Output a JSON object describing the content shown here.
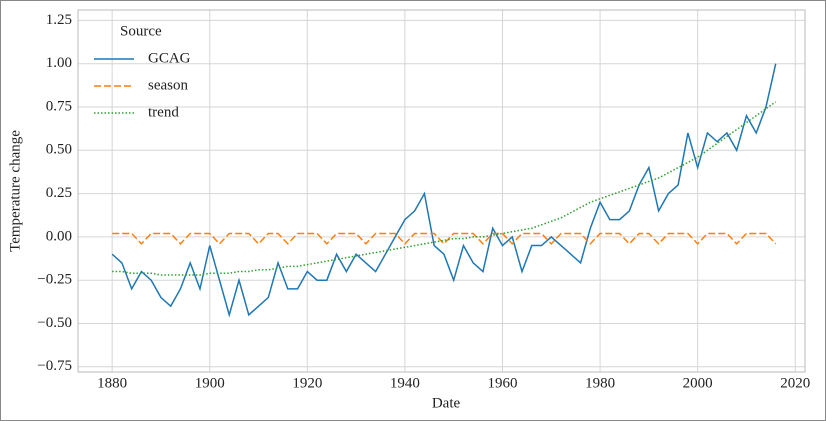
{
  "chart_data": {
    "type": "line",
    "xlabel": "Date",
    "ylabel": "Temperature change",
    "legend_title": "Source",
    "legend_position": "upper left",
    "grid": true,
    "xlim": [
      1873,
      2022
    ],
    "ylim": [
      -0.78,
      1.31
    ],
    "xticks": [
      1880,
      1900,
      1920,
      1940,
      1960,
      1980,
      2000,
      2020
    ],
    "yticks": [
      {
        "value": -0.75,
        "label": "−0.75"
      },
      {
        "value": -0.5,
        "label": "−0.50"
      },
      {
        "value": -0.25,
        "label": "−0.25"
      },
      {
        "value": 0,
        "label": "0.00"
      },
      {
        "value": 0.25,
        "label": "0.25"
      },
      {
        "value": 0.5,
        "label": "0.50"
      },
      {
        "value": 0.75,
        "label": "0.75"
      },
      {
        "value": 1,
        "label": "1.00"
      },
      {
        "value": 1.25,
        "label": "1.25"
      }
    ],
    "x": [
      1880,
      1882,
      1884,
      1886,
      1888,
      1890,
      1892,
      1894,
      1896,
      1898,
      1900,
      1902,
      1904,
      1906,
      1908,
      1910,
      1912,
      1914,
      1916,
      1918,
      1920,
      1922,
      1924,
      1926,
      1928,
      1930,
      1932,
      1934,
      1936,
      1938,
      1940,
      1942,
      1944,
      1946,
      1948,
      1950,
      1952,
      1954,
      1956,
      1958,
      1960,
      1962,
      1964,
      1966,
      1968,
      1970,
      1972,
      1974,
      1976,
      1978,
      1980,
      1982,
      1984,
      1986,
      1988,
      1990,
      1992,
      1994,
      1996,
      1998,
      2000,
      2002,
      2004,
      2006,
      2008,
      2010,
      2012,
      2014,
      2016
    ],
    "series": [
      {
        "name": "GCAG",
        "color": "#1f77b4",
        "linestyle": "solid",
        "values": [
          -0.1,
          -0.15,
          -0.3,
          -0.2,
          -0.25,
          -0.35,
          -0.4,
          -0.3,
          -0.15,
          -0.3,
          -0.05,
          -0.25,
          -0.45,
          -0.25,
          -0.45,
          -0.4,
          -0.35,
          -0.15,
          -0.3,
          -0.3,
          -0.2,
          -0.25,
          -0.25,
          -0.1,
          -0.2,
          -0.1,
          -0.15,
          -0.2,
          -0.1,
          0.0,
          0.1,
          0.15,
          0.25,
          -0.05,
          -0.1,
          -0.25,
          -0.05,
          -0.15,
          -0.2,
          0.05,
          -0.05,
          0.0,
          -0.2,
          -0.05,
          -0.05,
          0.0,
          -0.05,
          -0.1,
          -0.15,
          0.05,
          0.2,
          0.1,
          0.1,
          0.15,
          0.3,
          0.4,
          0.15,
          0.25,
          0.3,
          0.6,
          0.4,
          0.6,
          0.55,
          0.6,
          0.5,
          0.7,
          0.6,
          0.75,
          1.0
        ]
      },
      {
        "name": "season",
        "color": "#ff7f0e",
        "linestyle": "dashed",
        "values": [
          0.02,
          0.02,
          0.02,
          -0.04,
          0.02,
          0.02,
          0.02,
          -0.04,
          0.02,
          0.02,
          0.02,
          -0.04,
          0.02,
          0.02,
          0.02,
          -0.04,
          0.02,
          0.02,
          -0.04,
          0.02,
          0.02,
          0.02,
          -0.04,
          0.02,
          0.02,
          0.02,
          -0.04,
          0.02,
          0.02,
          0.02,
          -0.04,
          0.02,
          0.02,
          0.02,
          -0.04,
          0.02,
          0.02,
          0.02,
          -0.04,
          0.02,
          0.02,
          -0.04,
          0.02,
          0.02,
          0.02,
          -0.04,
          0.02,
          0.02,
          0.02,
          -0.04,
          0.02,
          0.02,
          0.02,
          -0.04,
          0.02,
          0.02,
          -0.04,
          0.02,
          0.02,
          0.02,
          -0.04,
          0.02,
          0.02,
          0.02,
          -0.04,
          0.02,
          0.02,
          0.02,
          -0.04
        ]
      },
      {
        "name": "trend",
        "color": "#2ca02c",
        "linestyle": "dotted",
        "values": [
          -0.2,
          -0.2,
          -0.21,
          -0.21,
          -0.21,
          -0.22,
          -0.22,
          -0.22,
          -0.22,
          -0.22,
          -0.21,
          -0.21,
          -0.21,
          -0.2,
          -0.2,
          -0.19,
          -0.19,
          -0.18,
          -0.17,
          -0.17,
          -0.16,
          -0.15,
          -0.14,
          -0.13,
          -0.12,
          -0.11,
          -0.1,
          -0.09,
          -0.08,
          -0.07,
          -0.06,
          -0.05,
          -0.04,
          -0.03,
          -0.02,
          -0.01,
          -0.01,
          0.0,
          0.0,
          0.01,
          0.02,
          0.03,
          0.04,
          0.05,
          0.07,
          0.09,
          0.11,
          0.14,
          0.17,
          0.2,
          0.22,
          0.24,
          0.26,
          0.28,
          0.3,
          0.32,
          0.34,
          0.37,
          0.4,
          0.43,
          0.46,
          0.5,
          0.54,
          0.58,
          0.62,
          0.66,
          0.7,
          0.74,
          0.78
        ]
      }
    ]
  }
}
